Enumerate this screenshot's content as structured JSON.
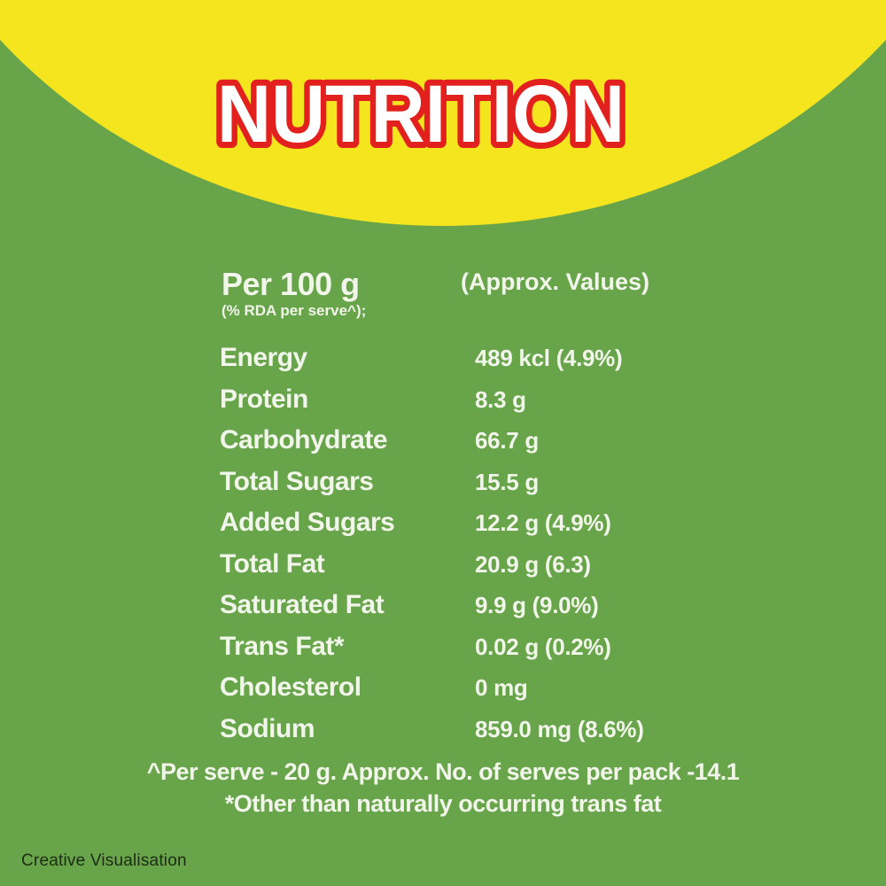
{
  "title": "NUTRITION",
  "header": {
    "col1_title": "Per 100 g",
    "col1_subtitle": "(% RDA per serve^);",
    "col2_title": "(Approx. Values)"
  },
  "rows": [
    {
      "label": "Energy",
      "value": "489 kcl (4.9%)"
    },
    {
      "label": "Protein",
      "value": "8.3 g"
    },
    {
      "label": "Carbohydrate",
      "value": "66.7 g"
    },
    {
      "label": "Total Sugars",
      "value": "15.5 g"
    },
    {
      "label": "Added Sugars",
      "value": "12.2 g (4.9%)"
    },
    {
      "label": "Total Fat",
      "value": "20.9 g (6.3)"
    },
    {
      "label": "Saturated Fat",
      "value": "9.9 g (9.0%)"
    },
    {
      "label": "Trans Fat*",
      "value": "0.02 g (0.2%)"
    },
    {
      "label": "Cholesterol",
      "value": "0 mg"
    },
    {
      "label": "Sodium",
      "value": "859.0 mg (8.6%)"
    }
  ],
  "footnotes": [
    "^Per serve - 20 g. Approx. No. of serves per pack -14.1",
    "*Other than naturally occurring trans fat"
  ],
  "watermark": "Creative Visualisation",
  "colors": {
    "bg_green": "#67a44a",
    "banner_yellow": "#f5e51f",
    "title_red": "#e2201d",
    "title_fill": "#ffffff",
    "text": "#f2f5ea",
    "watermark": "#1e2b14"
  }
}
